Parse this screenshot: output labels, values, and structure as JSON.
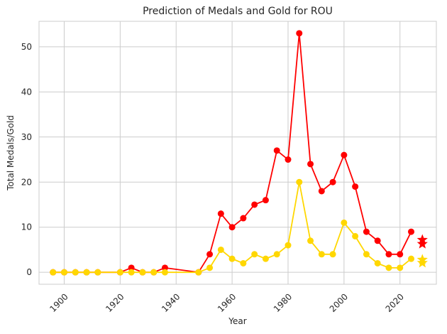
{
  "chart_data": {
    "type": "line",
    "title": "Prediction of Medals and Gold for ROU",
    "xlabel": "Year",
    "ylabel": "Total Medals/Gold",
    "xlim": [
      1891,
      2033
    ],
    "ylim": [
      -2.65,
      55.65
    ],
    "x_ticks": [
      1900,
      1920,
      1940,
      1960,
      1980,
      2000,
      2020
    ],
    "y_ticks": [
      0,
      10,
      20,
      30,
      40,
      50
    ],
    "grid": true,
    "x": [
      1896,
      1900,
      1904,
      1908,
      1912,
      1920,
      1924,
      1928,
      1932,
      1936,
      1948,
      1952,
      1956,
      1960,
      1964,
      1968,
      1972,
      1976,
      1980,
      1984,
      1988,
      1992,
      1996,
      2000,
      2004,
      2008,
      2012,
      2016,
      2020,
      2024
    ],
    "series": [
      {
        "color": "#ff0000",
        "values": [
          0,
          0,
          0,
          0,
          0,
          0,
          1,
          0,
          0,
          1,
          0,
          4,
          13,
          10,
          12,
          15,
          16,
          27,
          25,
          53,
          24,
          18,
          20,
          26,
          19,
          9,
          7,
          4,
          4,
          9
        ],
        "prediction": {
          "x": 2028,
          "values": [
            7.2,
            6.3
          ]
        }
      },
      {
        "color": "#ffd700",
        "values": [
          0,
          0,
          0,
          0,
          0,
          0,
          0,
          0,
          0,
          0,
          0,
          1,
          5,
          3,
          2,
          4,
          3,
          4,
          6,
          20,
          7,
          4,
          4,
          11,
          8,
          4,
          2,
          1,
          1,
          3
        ],
        "prediction": {
          "x": 2028,
          "values": [
            2.8,
            2.1
          ]
        }
      }
    ]
  }
}
